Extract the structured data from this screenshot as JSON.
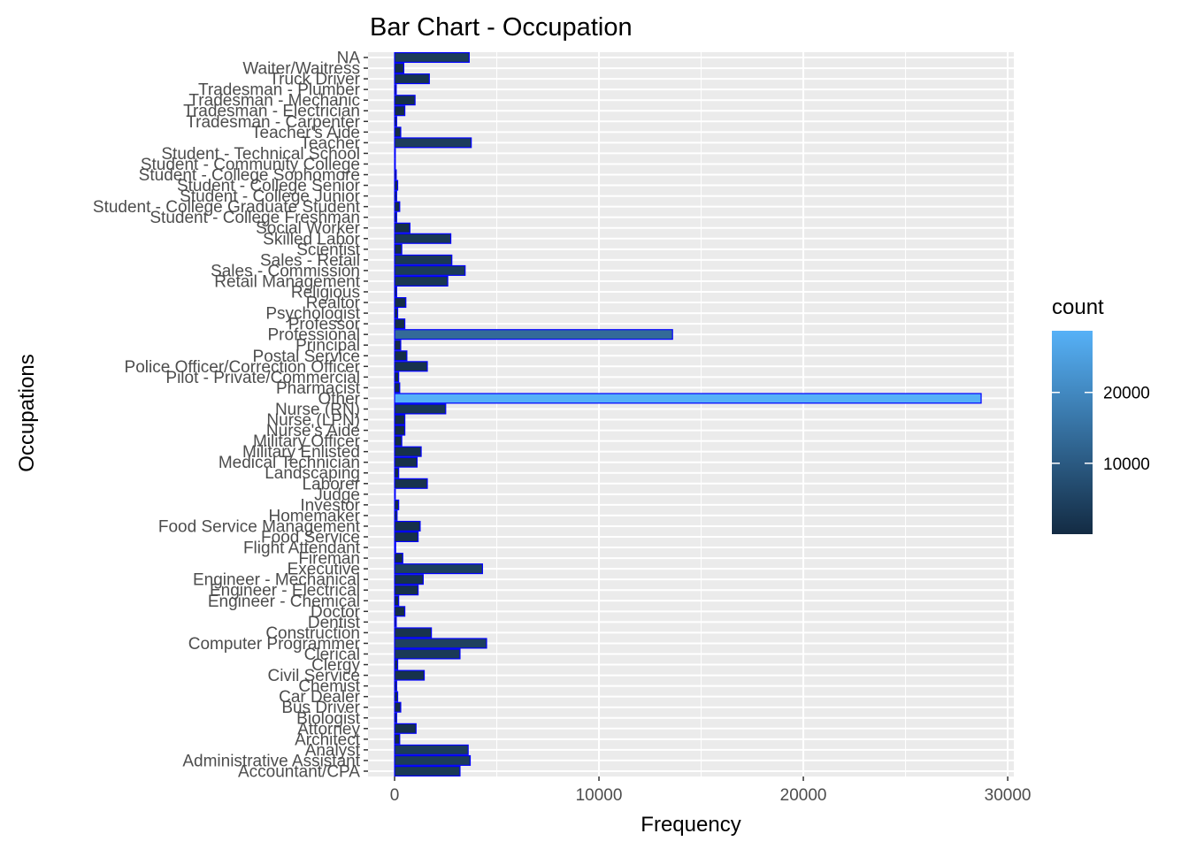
{
  "chart_data": {
    "type": "bar",
    "orientation": "horizontal",
    "title": "Bar Chart - Occupation",
    "xlabel": "Frequency",
    "ylabel": "Occupations",
    "xlim": [
      -1300,
      30300
    ],
    "xticks": [
      0,
      10000,
      20000,
      30000
    ],
    "xtick_labels": [
      "0",
      "10000",
      "20000",
      "30000"
    ],
    "grid": true,
    "bar_outline_color": "#0000ff",
    "panel_background": "#ebebeb",
    "legend": {
      "title": "count",
      "placement": "right",
      "scale": "continuous",
      "low_color": "#132b43",
      "high_color": "#56b1f7",
      "range": [
        0,
        28700
      ],
      "ticks": [
        10000,
        20000
      ],
      "tick_labels": [
        "10000",
        "20000"
      ]
    },
    "categories": [
      "Accountant/CPA",
      "Administrative Assistant",
      "Analyst",
      "Architect",
      "Attorney",
      "Biologist",
      "Bus Driver",
      "Car Dealer",
      "Chemist",
      "Civil Service",
      "Clergy",
      "Clerical",
      "Computer Programmer",
      "Construction",
      "Dentist",
      "Doctor",
      "Engineer - Chemical",
      "Engineer - Electrical",
      "Engineer - Mechanical",
      "Executive",
      "Fireman",
      "Flight Attendant",
      "Food Service",
      "Food Service Management",
      "Homemaker",
      "Investor",
      "Judge",
      "Laborer",
      "Landscaping",
      "Medical Technician",
      "Military Enlisted",
      "Military Officer",
      "Nurse's Aide",
      "Nurse (LPN)",
      "Nurse (RN)",
      "Other",
      "Pharmacist",
      "Pilot - Private/Commercial",
      "Police Officer/Correction Officer",
      "Postal Service",
      "Principal",
      "Professional",
      "Professor",
      "Psychologist",
      "Realtor",
      "Religious",
      "Retail Management",
      "Sales - Commission",
      "Sales - Retail",
      "Scientist",
      "Skilled Labor",
      "Social Worker",
      "Student - College Freshman",
      "Student - College Graduate Student",
      "Student - College Junior",
      "Student - College Senior",
      "Student - College Sophomore",
      "Student - Community College",
      "Student - Technical School",
      "Teacher",
      "Teacher's Aide",
      "Tradesman - Carpenter",
      "Tradesman - Electrician",
      "Tradesman - Mechanic",
      "Tradesman - Plumber",
      "Truck Driver",
      "Waiter/Waitress",
      "NA"
    ],
    "values": [
      3200,
      3700,
      3600,
      250,
      1050,
      100,
      300,
      150,
      100,
      1450,
      150,
      3200,
      4500,
      1800,
      80,
      500,
      200,
      1150,
      1400,
      4300,
      400,
      50,
      1150,
      1250,
      120,
      200,
      30,
      1600,
      200,
      1100,
      1300,
      350,
      500,
      500,
      2500,
      28700,
      250,
      200,
      1600,
      600,
      300,
      13600,
      500,
      150,
      550,
      100,
      2600,
      3450,
      2800,
      350,
      2750,
      750,
      100,
      250,
      100,
      150,
      80,
      30,
      20,
      3750,
      300,
      100,
      500,
      1000,
      80,
      1700,
      450,
      3650
    ]
  }
}
